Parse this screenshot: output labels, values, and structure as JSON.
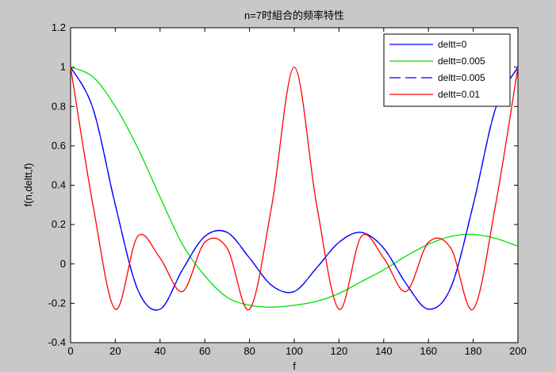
{
  "chart_data": {
    "type": "line",
    "title": "n=7时組合的频率特性",
    "xlabel": "f",
    "ylabel": "f(n,deltt,f)",
    "xlim": [
      0,
      200
    ],
    "ylim": [
      -0.4,
      1.2
    ],
    "xticks": [
      0,
      20,
      40,
      60,
      80,
      100,
      120,
      140,
      160,
      180,
      200
    ],
    "yticks": [
      -0.4,
      -0.2,
      0,
      0.2,
      0.4,
      0.6,
      0.8,
      1,
      1.2
    ],
    "xtick_labels": [
      "0",
      "20",
      "40",
      "60",
      "80",
      "100",
      "120",
      "140",
      "160",
      "180",
      "200"
    ],
    "ytick_labels": [
      "-0.4",
      "-0.2",
      "0",
      "0.2",
      "0.4",
      "0.6",
      "0.8",
      "1",
      "1.2"
    ],
    "grid": false,
    "legend_position": "top-right",
    "x": [
      0,
      10,
      20,
      30,
      40,
      50,
      60,
      70,
      80,
      90,
      100,
      110,
      120,
      130,
      140,
      150,
      160,
      170,
      180,
      190,
      200
    ],
    "series": [
      {
        "name": "deltt=0",
        "color": "#0000ff",
        "dash": "solid",
        "values": [
          1.0,
          0.79,
          0.3,
          -0.13,
          -0.23,
          -0.03,
          0.14,
          0.16,
          0.03,
          -0.11,
          -0.14,
          -0.02,
          0.11,
          0.16,
          0.08,
          -0.1,
          -0.23,
          -0.12,
          0.3,
          0.79,
          1.0
        ]
      },
      {
        "name": "deltt=0.005",
        "color": "#00e000",
        "dash": "solid",
        "values": [
          1.0,
          0.95,
          0.8,
          0.59,
          0.34,
          0.1,
          -0.06,
          -0.17,
          -0.21,
          -0.22,
          -0.21,
          -0.19,
          -0.15,
          -0.09,
          -0.03,
          0.04,
          0.1,
          0.14,
          0.15,
          0.13,
          0.09
        ]
      },
      {
        "name": "deltt=0.005",
        "color": "#0000ff",
        "dash": "dashed",
        "values": [
          1.0,
          0.79,
          0.3,
          -0.13,
          -0.23,
          -0.03,
          0.14,
          0.16,
          0.03,
          -0.11,
          -0.14,
          -0.02,
          0.11,
          0.16,
          0.08,
          -0.1,
          -0.23,
          -0.12,
          0.3,
          0.79,
          1.0
        ]
      },
      {
        "name": "deltt=0.01",
        "color": "#ff0000",
        "dash": "solid",
        "values": [
          1.0,
          0.3,
          -0.23,
          0.14,
          0.03,
          -0.14,
          0.11,
          0.08,
          -0.23,
          0.3,
          1.0,
          0.3,
          -0.23,
          0.14,
          0.03,
          -0.14,
          0.11,
          0.08,
          -0.23,
          0.3,
          1.0
        ]
      }
    ]
  }
}
